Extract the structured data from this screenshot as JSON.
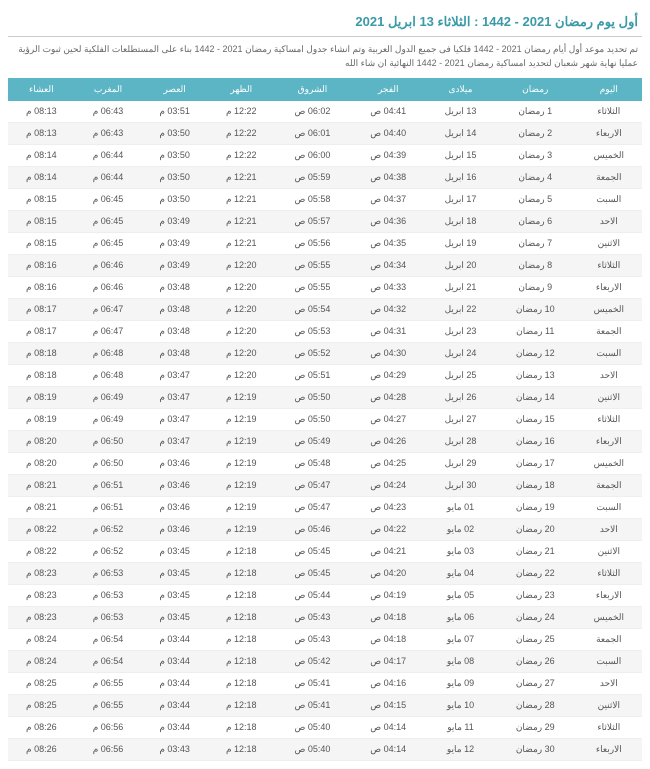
{
  "title": "أول يوم رمضان 2021 - 1442 : الثلاثاء 13 ابريل 2021",
  "desc": "تم تحديد موعد أول أيام رمضان 2021 - 1442 فلكيا فى جميع الدول العربية وتم انشاء جدول امساكية رمضان 2021 - 1442 بناء على المستطلعات الفلكية لحين ثبوت الرؤية عمليا نهاية شهر شعبان لتحديد امساكية رمضان 2021 - 1442 النهائية ان شاء الله",
  "headers": [
    "اليوم",
    "رمضان",
    "ميلادى",
    "الفجر",
    "الشروق",
    "الظهر",
    "العصر",
    "المغرب",
    "العشاء"
  ],
  "rows": [
    [
      "الثلاثاء",
      "1 رمضان",
      "13 ابريل",
      "04:41 ص",
      "06:02 ص",
      "12:22 م",
      "03:51 م",
      "06:43 م",
      "08:13 م"
    ],
    [
      "الاربعاء",
      "2 رمضان",
      "14 ابريل",
      "04:40 ص",
      "06:01 ص",
      "12:22 م",
      "03:50 م",
      "06:43 م",
      "08:13 م"
    ],
    [
      "الخميس",
      "3 رمضان",
      "15 ابريل",
      "04:39 ص",
      "06:00 ص",
      "12:22 م",
      "03:50 م",
      "06:44 م",
      "08:14 م"
    ],
    [
      "الجمعة",
      "4 رمضان",
      "16 ابريل",
      "04:38 ص",
      "05:59 ص",
      "12:21 م",
      "03:50 م",
      "06:44 م",
      "08:14 م"
    ],
    [
      "السبت",
      "5 رمضان",
      "17 ابريل",
      "04:37 ص",
      "05:58 ص",
      "12:21 م",
      "03:50 م",
      "06:45 م",
      "08:15 م"
    ],
    [
      "الاحد",
      "6 رمضان",
      "18 ابريل",
      "04:36 ص",
      "05:57 ص",
      "12:21 م",
      "03:49 م",
      "06:45 م",
      "08:15 م"
    ],
    [
      "الاثنين",
      "7 رمضان",
      "19 ابريل",
      "04:35 ص",
      "05:56 ص",
      "12:21 م",
      "03:49 م",
      "06:45 م",
      "08:15 م"
    ],
    [
      "الثلاثاء",
      "8 رمضان",
      "20 ابريل",
      "04:34 ص",
      "05:55 ص",
      "12:20 م",
      "03:49 م",
      "06:46 م",
      "08:16 م"
    ],
    [
      "الاربعاء",
      "9 رمضان",
      "21 ابريل",
      "04:33 ص",
      "05:55 ص",
      "12:20 م",
      "03:48 م",
      "06:46 م",
      "08:16 م"
    ],
    [
      "الخميس",
      "10 رمضان",
      "22 ابريل",
      "04:32 ص",
      "05:54 ص",
      "12:20 م",
      "03:48 م",
      "06:47 م",
      "08:17 م"
    ],
    [
      "الجمعة",
      "11 رمضان",
      "23 ابريل",
      "04:31 ص",
      "05:53 ص",
      "12:20 م",
      "03:48 م",
      "06:47 م",
      "08:17 م"
    ],
    [
      "السبت",
      "12 رمضان",
      "24 ابريل",
      "04:30 ص",
      "05:52 ص",
      "12:20 م",
      "03:48 م",
      "06:48 م",
      "08:18 م"
    ],
    [
      "الاحد",
      "13 رمضان",
      "25 ابريل",
      "04:29 ص",
      "05:51 ص",
      "12:20 م",
      "03:47 م",
      "06:48 م",
      "08:18 م"
    ],
    [
      "الاثنين",
      "14 رمضان",
      "26 ابريل",
      "04:28 ص",
      "05:50 ص",
      "12:19 م",
      "03:47 م",
      "06:49 م",
      "08:19 م"
    ],
    [
      "الثلاثاء",
      "15 رمضان",
      "27 ابريل",
      "04:27 ص",
      "05:50 ص",
      "12:19 م",
      "03:47 م",
      "06:49 م",
      "08:19 م"
    ],
    [
      "الاربعاء",
      "16 رمضان",
      "28 ابريل",
      "04:26 ص",
      "05:49 ص",
      "12:19 م",
      "03:47 م",
      "06:50 م",
      "08:20 م"
    ],
    [
      "الخميس",
      "17 رمضان",
      "29 ابريل",
      "04:25 ص",
      "05:48 ص",
      "12:19 م",
      "03:46 م",
      "06:50 م",
      "08:20 م"
    ],
    [
      "الجمعة",
      "18 رمضان",
      "30 ابريل",
      "04:24 ص",
      "05:47 ص",
      "12:19 م",
      "03:46 م",
      "06:51 م",
      "08:21 م"
    ],
    [
      "السبت",
      "19 رمضان",
      "01 مايو",
      "04:23 ص",
      "05:47 ص",
      "12:19 م",
      "03:46 م",
      "06:51 م",
      "08:21 م"
    ],
    [
      "الاحد",
      "20 رمضان",
      "02 مايو",
      "04:22 ص",
      "05:46 ص",
      "12:19 م",
      "03:46 م",
      "06:52 م",
      "08:22 م"
    ],
    [
      "الاثنين",
      "21 رمضان",
      "03 مايو",
      "04:21 ص",
      "05:45 ص",
      "12:18 م",
      "03:45 م",
      "06:52 م",
      "08:22 م"
    ],
    [
      "الثلاثاء",
      "22 رمضان",
      "04 مايو",
      "04:20 ص",
      "05:45 ص",
      "12:18 م",
      "03:45 م",
      "06:53 م",
      "08:23 م"
    ],
    [
      "الاربعاء",
      "23 رمضان",
      "05 مايو",
      "04:19 ص",
      "05:44 ص",
      "12:18 م",
      "03:45 م",
      "06:53 م",
      "08:23 م"
    ],
    [
      "الخميس",
      "24 رمضان",
      "06 مايو",
      "04:18 ص",
      "05:43 ص",
      "12:18 م",
      "03:45 م",
      "06:53 م",
      "08:23 م"
    ],
    [
      "الجمعة",
      "25 رمضان",
      "07 مايو",
      "04:18 ص",
      "05:43 ص",
      "12:18 م",
      "03:44 م",
      "06:54 م",
      "08:24 م"
    ],
    [
      "السبت",
      "26 رمضان",
      "08 مايو",
      "04:17 ص",
      "05:42 ص",
      "12:18 م",
      "03:44 م",
      "06:54 م",
      "08:24 م"
    ],
    [
      "الاحد",
      "27 رمضان",
      "09 مايو",
      "04:16 ص",
      "05:41 ص",
      "12:18 م",
      "03:44 م",
      "06:55 م",
      "08:25 م"
    ],
    [
      "الاثنين",
      "28 رمضان",
      "10 مايو",
      "04:15 ص",
      "05:41 ص",
      "12:18 م",
      "03:44 م",
      "06:55 م",
      "08:25 م"
    ],
    [
      "الثلاثاء",
      "29 رمضان",
      "11 مايو",
      "04:14 ص",
      "05:40 ص",
      "12:18 م",
      "03:44 م",
      "06:56 م",
      "08:26 م"
    ],
    [
      "الاربعاء",
      "30 رمضان",
      "12 مايو",
      "04:14 ص",
      "05:40 ص",
      "12:18 م",
      "03:43 م",
      "06:56 م",
      "08:26 م"
    ]
  ]
}
